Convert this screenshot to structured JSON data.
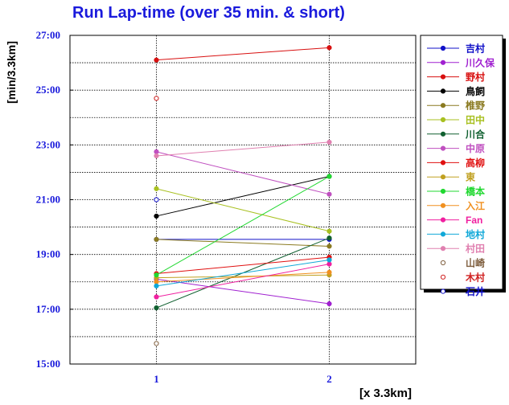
{
  "chart_data": {
    "type": "line",
    "title": "Run Lap-time (over 35 min. & short)",
    "ylabel": "[min/3.3km]",
    "xlabel": "[x 3.3km]",
    "x": [
      1,
      2
    ],
    "xticks": [
      "1",
      "2"
    ],
    "xlim": [
      0.5,
      2.5
    ],
    "ylim": [
      15,
      27
    ],
    "yticks": [
      "15:00",
      "17:00",
      "19:00",
      "21:00",
      "23:00",
      "25:00",
      "27:00"
    ],
    "ytick_values": [
      15,
      17,
      19,
      21,
      23,
      25,
      27
    ],
    "grid": true,
    "legend_position": "right",
    "series": [
      {
        "name": "吉村",
        "color": "#1010c8",
        "filled": true,
        "values": [
          19.55,
          19.55
        ]
      },
      {
        "name": "川久保",
        "color": "#a020d0",
        "filled": true,
        "values": [
          18.1,
          17.2
        ]
      },
      {
        "name": "野村",
        "color": "#d81010",
        "filled": true,
        "values": [
          26.1,
          26.55
        ]
      },
      {
        "name": "鳥飼",
        "color": "#000000",
        "filled": true,
        "values": [
          20.4,
          21.85
        ]
      },
      {
        "name": "椎野",
        "color": "#8a7a20",
        "filled": true,
        "values": [
          19.55,
          19.3
        ]
      },
      {
        "name": "田中",
        "color": "#a8c020",
        "filled": true,
        "values": [
          21.4,
          19.85
        ]
      },
      {
        "name": "川合",
        "color": "#106030",
        "filled": true,
        "values": [
          17.05,
          19.6
        ]
      },
      {
        "name": "中原",
        "color": "#c050c0",
        "filled": true,
        "values": [
          22.75,
          21.2
        ]
      },
      {
        "name": "高柳",
        "color": "#e01010",
        "filled": true,
        "values": [
          18.3,
          18.9
        ]
      },
      {
        "name": "東",
        "color": "#c0a020",
        "filled": true,
        "values": [
          18.15,
          18.25
        ]
      },
      {
        "name": "橋本",
        "color": "#20d830",
        "filled": true,
        "values": [
          18.25,
          21.85
        ]
      },
      {
        "name": "入江",
        "color": "#f09020",
        "filled": true,
        "values": [
          18.0,
          18.35
        ]
      },
      {
        "name": "Fan",
        "color": "#f020a0",
        "filled": true,
        "values": [
          17.45,
          18.65
        ]
      },
      {
        "name": "地村",
        "color": "#10a8d8",
        "filled": true,
        "values": [
          17.85,
          18.8
        ]
      },
      {
        "name": "村田",
        "color": "#e080b0",
        "filled": true,
        "values": [
          22.6,
          23.1
        ]
      },
      {
        "name": "山崎",
        "color": "#806040",
        "filled": false,
        "values": [
          15.75,
          null
        ]
      },
      {
        "name": "木村",
        "color": "#d02020",
        "filled": false,
        "values": [
          24.7,
          null
        ]
      },
      {
        "name": "石井",
        "color": "#1010c8",
        "filled": false,
        "values": [
          21.0,
          null
        ]
      }
    ]
  }
}
